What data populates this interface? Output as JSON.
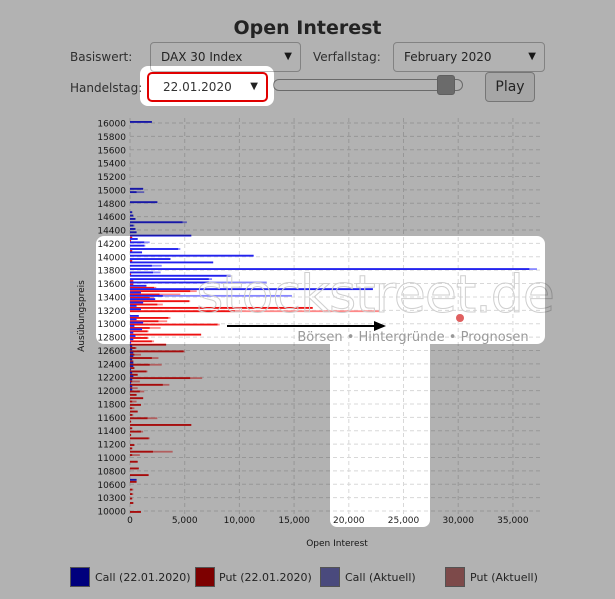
{
  "title": "Open Interest",
  "controls": {
    "basiswert_label": "Basiswert:",
    "basiswert_value": "DAX 30 Index",
    "verfallstag_label": "Verfallstag:",
    "verfallstag_value": "February 2020",
    "handelstag_label": "Handelstag:",
    "handelstag_value": "22.01.2020",
    "dropdown_arrow": "▼",
    "slider_position_fraction": 0.9,
    "play_label": "Play"
  },
  "watermark": {
    "logo": "stockstreet.de",
    "tagline": "Börsen • Hintergründe • Prognosen"
  },
  "legend": [
    {
      "label": "Call (22.01.2020)",
      "color": "#0000b3"
    },
    {
      "label": "Put (22.01.2020)",
      "color": "#b30000"
    },
    {
      "label": "Call (Aktuell)",
      "color": "#6b6bb3"
    },
    {
      "label": "Put (Aktuell)",
      "color": "#b36b6b"
    }
  ],
  "chart_data": {
    "type": "bar",
    "orientation": "horizontal",
    "xlabel": "Open Interest",
    "ylabel": "Ausübungspreis",
    "xlim": [
      0,
      37500
    ],
    "x_ticks": [
      "0",
      "5,000",
      "10,000",
      "15,000",
      "20,000",
      "25,000",
      "30,000",
      "35,000"
    ],
    "y_ticks": [
      "16000",
      "15800",
      "15600",
      "15400",
      "15200",
      "15000",
      "14800",
      "14600",
      "14400",
      "14200",
      "14000",
      "13800",
      "13600",
      "13400",
      "13200",
      "13000",
      "12800",
      "12600",
      "12400",
      "12200",
      "12000",
      "11800",
      "11600",
      "11400",
      "11200",
      "11000",
      "10800",
      "10600",
      "10300",
      "10000"
    ],
    "grid": true,
    "colors": {
      "call": "#2222ee",
      "put": "#ee1111",
      "call_aktuell": "#8888ff",
      "put_aktuell": "#ff8888"
    },
    "series_keys": [
      "strike",
      "call",
      "put",
      "call_aktuell",
      "put_aktuell"
    ],
    "rows": [
      [
        16000,
        2000,
        0,
        2000,
        0
      ],
      [
        15000,
        1200,
        0,
        1200,
        0
      ],
      [
        14950,
        600,
        0,
        1300,
        0
      ],
      [
        14800,
        2500,
        0,
        2500,
        0
      ],
      [
        14650,
        200,
        0,
        200,
        0
      ],
      [
        14600,
        300,
        0,
        300,
        0
      ],
      [
        14550,
        500,
        0,
        500,
        0
      ],
      [
        14500,
        4800,
        0,
        5200,
        0
      ],
      [
        14450,
        300,
        0,
        400,
        0
      ],
      [
        14400,
        500,
        0,
        500,
        0
      ],
      [
        14350,
        600,
        0,
        600,
        0
      ],
      [
        14300,
        5600,
        200,
        5600,
        200
      ],
      [
        14250,
        700,
        100,
        700,
        100
      ],
      [
        14200,
        1300,
        0,
        1800,
        0
      ],
      [
        14150,
        1300,
        0,
        1400,
        0
      ],
      [
        14100,
        4400,
        200,
        4600,
        200
      ],
      [
        14050,
        1100,
        0,
        1100,
        0
      ],
      [
        14000,
        11300,
        0,
        11300,
        0
      ],
      [
        13950,
        3700,
        200,
        3700,
        200
      ],
      [
        13900,
        7600,
        0,
        7600,
        0
      ],
      [
        13850,
        2000,
        0,
        2900,
        0
      ],
      [
        13800,
        36500,
        0,
        37200,
        0
      ],
      [
        13750,
        2100,
        100,
        2800,
        100
      ],
      [
        13700,
        9200,
        0,
        9200,
        0
      ],
      [
        13650,
        7200,
        300,
        7500,
        300
      ],
      [
        13600,
        7200,
        300,
        12500,
        300
      ],
      [
        13550,
        1500,
        2200,
        1500,
        2400
      ],
      [
        13500,
        22200,
        5500,
        22200,
        6100
      ],
      [
        13450,
        1000,
        2700,
        1000,
        4600
      ],
      [
        13400,
        3000,
        1800,
        14800,
        2200
      ],
      [
        13350,
        2300,
        5400,
        2300,
        5500
      ],
      [
        13300,
        1200,
        2500,
        1200,
        3000
      ],
      [
        13250,
        600,
        16700,
        600,
        16700
      ],
      [
        13200,
        1000,
        9600,
        1000,
        22800
      ],
      [
        13100,
        800,
        3500,
        800,
        3700
      ],
      [
        13050,
        600,
        2600,
        600,
        3400
      ],
      [
        13000,
        1200,
        8000,
        1200,
        8200
      ],
      [
        12950,
        400,
        1800,
        400,
        2800
      ],
      [
        12900,
        1100,
        1600,
        1100,
        1700
      ],
      [
        12850,
        300,
        6500,
        300,
        6500
      ],
      [
        12800,
        500,
        1600,
        500,
        1700
      ],
      [
        12750,
        300,
        2000,
        300,
        2200
      ],
      [
        12700,
        100,
        3300,
        100,
        3300
      ],
      [
        12650,
        200,
        500,
        200,
        600
      ],
      [
        12600,
        200,
        4900,
        200,
        5000
      ],
      [
        12550,
        300,
        400,
        300,
        1000
      ],
      [
        12500,
        300,
        2000,
        300,
        2600
      ],
      [
        12450,
        200,
        300,
        200,
        300
      ],
      [
        12400,
        300,
        1800,
        300,
        2900
      ],
      [
        12350,
        300,
        400,
        300,
        400
      ],
      [
        12300,
        100,
        1500,
        100,
        1600
      ],
      [
        12250,
        200,
        700,
        200,
        700
      ],
      [
        12200,
        300,
        5500,
        300,
        6600
      ],
      [
        12150,
        200,
        200,
        200,
        900
      ],
      [
        12100,
        100,
        3000,
        100,
        3600
      ],
      [
        12050,
        200,
        200,
        200,
        700
      ],
      [
        12000,
        200,
        900,
        200,
        1300
      ],
      [
        11950,
        0,
        600,
        0,
        600
      ],
      [
        11900,
        0,
        1200,
        0,
        1200
      ],
      [
        11850,
        0,
        200,
        0,
        600
      ],
      [
        11800,
        0,
        1000,
        0,
        1000
      ],
      [
        11750,
        0,
        200,
        0,
        400
      ],
      [
        11700,
        0,
        700,
        0,
        700
      ],
      [
        11650,
        0,
        200,
        0,
        300
      ],
      [
        11600,
        0,
        1600,
        0,
        2500
      ],
      [
        11550,
        0,
        100,
        0,
        100
      ],
      [
        11500,
        0,
        5600,
        0,
        5600
      ],
      [
        11450,
        0,
        200,
        0,
        200
      ],
      [
        11400,
        0,
        1000,
        0,
        1200
      ],
      [
        11350,
        0,
        100,
        0,
        100
      ],
      [
        11300,
        0,
        1700,
        0,
        1800
      ],
      [
        11200,
        0,
        400,
        0,
        400
      ],
      [
        11150,
        0,
        200,
        0,
        200
      ],
      [
        11100,
        0,
        2100,
        0,
        3900
      ],
      [
        11050,
        0,
        200,
        0,
        900
      ],
      [
        10950,
        0,
        700,
        0,
        700
      ],
      [
        10850,
        0,
        800,
        0,
        800
      ],
      [
        10750,
        0,
        1700,
        0,
        1700
      ],
      [
        10650,
        600,
        600,
        600,
        600
      ],
      [
        10500,
        0,
        200,
        0,
        300
      ],
      [
        10400,
        0,
        200,
        0,
        300
      ],
      [
        10300,
        0,
        200,
        0,
        200
      ],
      [
        10200,
        0,
        300,
        0,
        300
      ],
      [
        10000,
        0,
        1000,
        0,
        1000
      ]
    ]
  }
}
